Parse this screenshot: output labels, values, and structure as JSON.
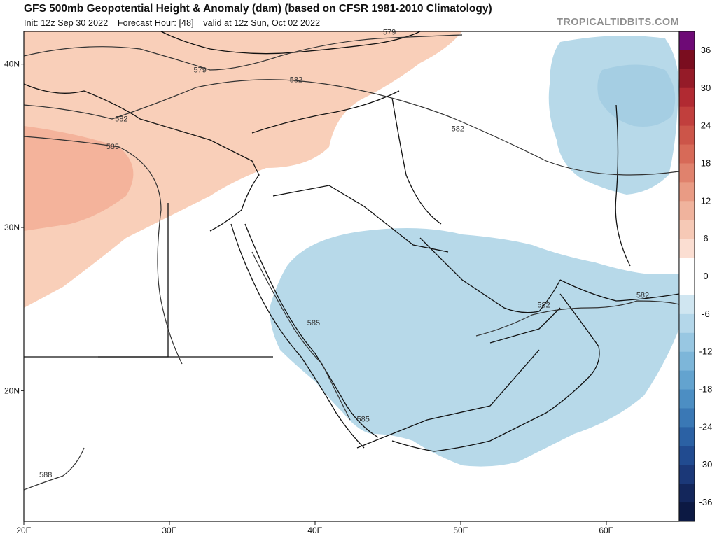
{
  "header": {
    "title": "GFS 500mb Geopotential Height & Anomaly (dam) (based on CFSR 1981-2010 Climatology)",
    "init": "Init: 12z Sep 30 2022",
    "forecast_hour": "Forecast Hour: [48]",
    "valid": "valid at 12z Sun, Oct 02 2022",
    "brand": "TROPICALTIDBITS.COM"
  },
  "map": {
    "lon_range": [
      20,
      65
    ],
    "lat_range": [
      12,
      42
    ],
    "lon_ticks": [
      {
        "lon": 20,
        "label": "20E"
      },
      {
        "lon": 30,
        "label": "30E"
      },
      {
        "lon": 40,
        "label": "40E"
      },
      {
        "lon": 50,
        "label": "50E"
      },
      {
        "lon": 60,
        "label": "60E"
      }
    ],
    "lat_ticks": [
      {
        "lat": 40,
        "label": "40N"
      },
      {
        "lat": 30,
        "label": "30N"
      },
      {
        "lat": 20,
        "label": "20N"
      }
    ],
    "contour_labels": [
      {
        "text": "579",
        "lon": 45.1,
        "lat": 41.8
      },
      {
        "text": "579",
        "lon": 32.1,
        "lat": 39.5
      },
      {
        "text": "582",
        "lon": 38.7,
        "lat": 38.9
      },
      {
        "text": "582",
        "lon": 26.7,
        "lat": 36.5
      },
      {
        "text": "582",
        "lon": 49.8,
        "lat": 35.9
      },
      {
        "text": "585",
        "lon": 26.1,
        "lat": 34.8
      },
      {
        "text": "585",
        "lon": 39.9,
        "lat": 24.0
      },
      {
        "text": "582",
        "lon": 55.7,
        "lat": 25.1
      },
      {
        "text": "582",
        "lon": 62.5,
        "lat": 25.7
      },
      {
        "text": "585",
        "lon": 43.3,
        "lat": 18.1
      },
      {
        "text": "588",
        "lon": 21.5,
        "lat": 14.7
      }
    ],
    "colors": {
      "positive_light": "#f9cfb9",
      "positive_medium": "#f4b39b",
      "negative_light": "#b7d9e9",
      "negative_medium": "#9fcbe1",
      "contour": "#333333",
      "border": "#111111"
    }
  },
  "colorbar": {
    "labels": [
      "36",
      "30",
      "24",
      "18",
      "12",
      "6",
      "0",
      "-6",
      "-12",
      "-18",
      "-24",
      "-30",
      "-36"
    ],
    "colors": [
      "#6e0a76",
      "#7a0d1f",
      "#951b28",
      "#b12a32",
      "#c13f3d",
      "#cc5549",
      "#d76a58",
      "#e0826d",
      "#e99b84",
      "#f0b39d",
      "#f6c9b6",
      "#fbded2",
      "#ffffff",
      "#ffffff",
      "#d0e6f1",
      "#b4d7ea",
      "#98c7e2",
      "#7db6d9",
      "#63a3cf",
      "#4c8ec3",
      "#3a78b5",
      "#2b61a4",
      "#214b90",
      "#1b3878",
      "#13265b",
      "#0c1943"
    ]
  }
}
